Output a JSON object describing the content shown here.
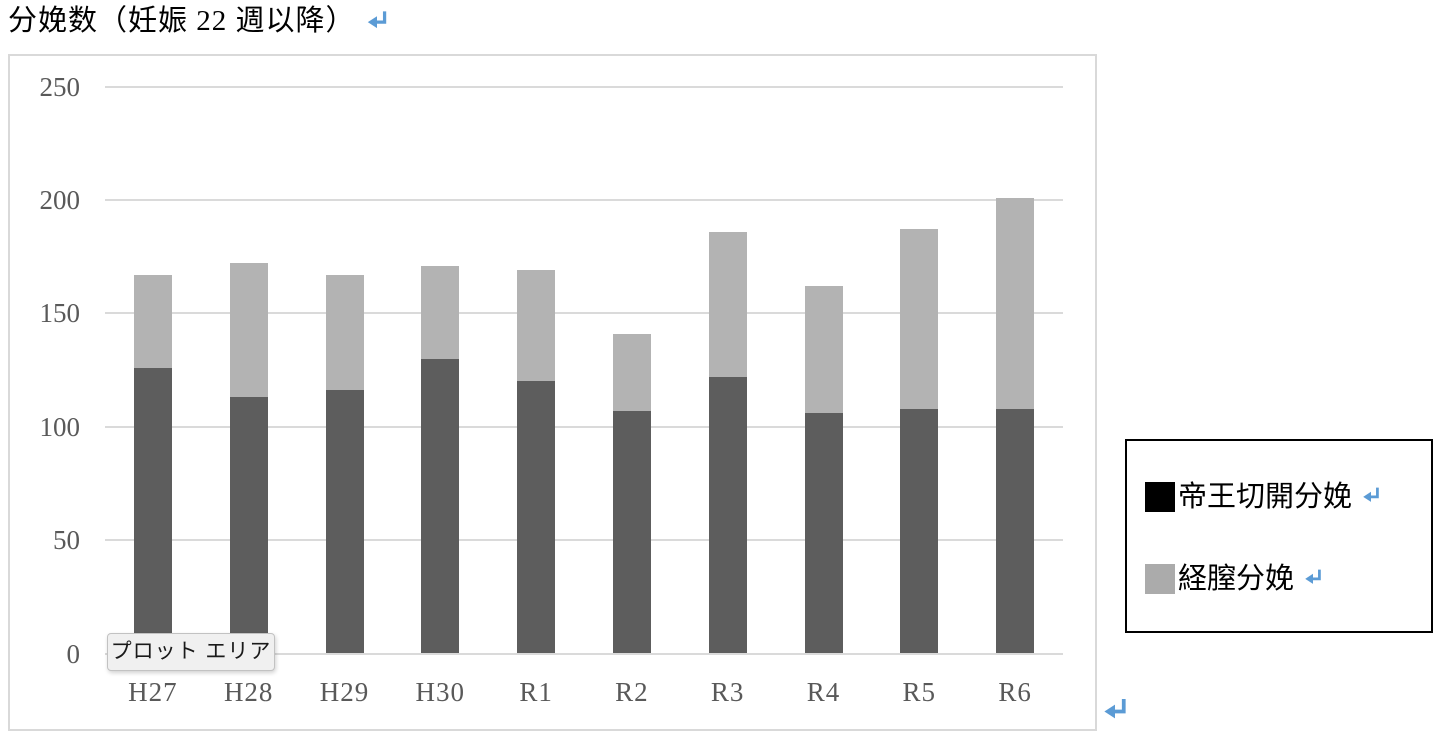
{
  "tooltip": {
    "text": "プロット エリア"
  },
  "legend": {
    "items": [
      {
        "label": "帝王切開分娩",
        "swatch_color": "#000000"
      },
      {
        "label": "経膣分娩",
        "swatch_color": "#ababab"
      }
    ]
  },
  "colors": {
    "bar_dark": "#5d5d5d",
    "bar_light": "#b3b3b3",
    "gridline": "#dadada",
    "axis_text": "#595959",
    "frame_border": "#d9d9d9",
    "formatting_mark": "#5b9bd5",
    "tooltip_bg": "#f0f0f0",
    "tooltip_border": "#c2c2c2",
    "legend_border": "#000000"
  },
  "chart_data": {
    "type": "bar",
    "stacked": true,
    "title": "分娩数（妊娠 22 週以降）",
    "categories": [
      "H27",
      "H28",
      "H29",
      "H30",
      "R1",
      "R2",
      "R3",
      "R4",
      "R5",
      "R6"
    ],
    "series": [
      {
        "name": "帝王切開分娩",
        "color": "#5d5d5d",
        "values": [
          126,
          113,
          116,
          130,
          120,
          107,
          122,
          106,
          108,
          108
        ]
      },
      {
        "name": "経膣分娩",
        "color": "#b3b3b3",
        "values": [
          41,
          59,
          51,
          41,
          49,
          34,
          64,
          56,
          79,
          93
        ]
      }
    ],
    "totals": [
      167,
      172,
      167,
      171,
      169,
      141,
      186,
      162,
      187,
      201
    ],
    "ylim": [
      0,
      250
    ],
    "yticks": [
      0,
      50,
      100,
      150,
      200,
      250
    ],
    "grid": true,
    "legend_position": "right-outside"
  }
}
